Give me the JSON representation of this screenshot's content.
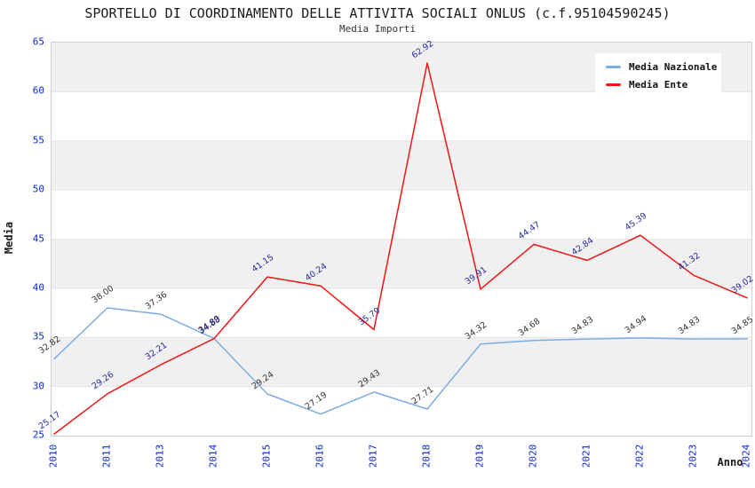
{
  "title": "SPORTELLO DI COORDINAMENTO DELLE ATTIVITA SOCIALI ONLUS (c.f.95104590245)",
  "subtitle": "Media Importi",
  "chart_data": {
    "type": "line",
    "categories": [
      "2010",
      "2011",
      "2013",
      "2014",
      "2015",
      "2016",
      "2017",
      "2018",
      "2019",
      "2020",
      "2021",
      "2022",
      "2023",
      "2024"
    ],
    "series": [
      {
        "name": "Media Nazionale",
        "line_color": "#7aade2",
        "label_color": "#333333",
        "values": [
          32.82,
          38.0,
          37.36,
          34.89,
          29.24,
          27.19,
          29.43,
          27.71,
          34.32,
          34.68,
          34.83,
          34.94,
          34.83,
          34.85
        ]
      },
      {
        "name": "Media Ente",
        "line_color": "#ee1515",
        "label_color": "#28289e",
        "values": [
          25.17,
          29.26,
          32.21,
          34.88,
          41.15,
          40.24,
          35.79,
          62.92,
          39.91,
          44.47,
          42.84,
          45.39,
          41.32,
          39.02
        ]
      }
    ],
    "xlabel": "Anno",
    "ylabel": "Media",
    "ylim": [
      25,
      65
    ],
    "yticks": [
      25,
      30,
      35,
      40,
      45,
      50,
      55,
      60,
      65
    ],
    "grid": "horizontal-bands-alternating",
    "band_color": "#f0f0f0",
    "gridline_color": "#e4e4e4",
    "tick_label_color": "#0a28cf",
    "legend_position": "top-right"
  }
}
